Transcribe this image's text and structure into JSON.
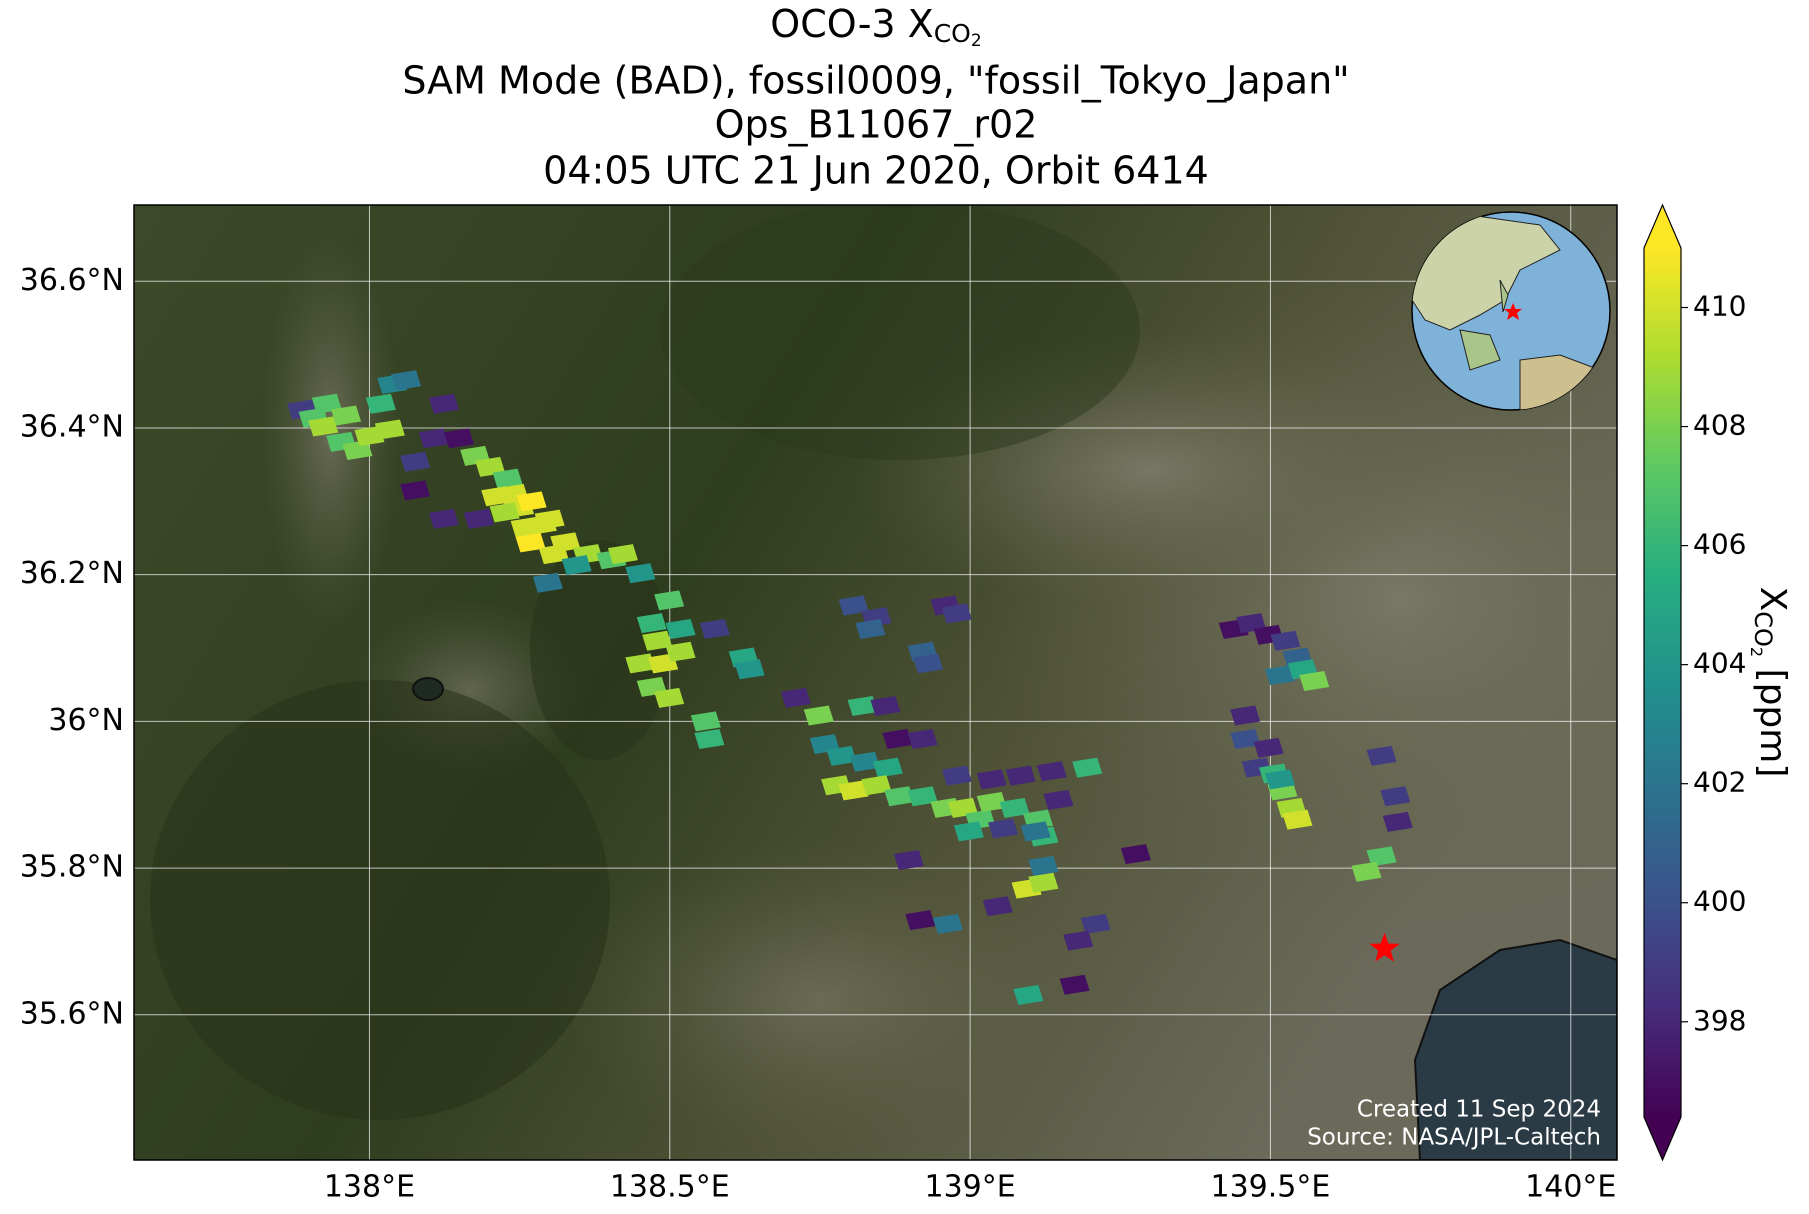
{
  "chart_data": {
    "type": "map",
    "title": {
      "main": "OCO-3 X",
      "sub": "CO",
      "sub2": "2"
    },
    "subtitle": [
      "SAM Mode (BAD), fossil0009, \"fossil_Tokyo_Japan\"",
      "Ops_B11067_r02",
      "04:05 UTC 21 Jun 2020, Orbit 6414"
    ],
    "xlim": [
      137.608,
      140.077
    ],
    "ylim": [
      35.402,
      36.704
    ],
    "xticks": [
      {
        "value": 138,
        "label": "138°E"
      },
      {
        "value": 138.5,
        "label": "138.5°E"
      },
      {
        "value": 139,
        "label": "139°E"
      },
      {
        "value": 139.5,
        "label": "139.5°E"
      },
      {
        "value": 140,
        "label": "140°E"
      }
    ],
    "yticks": [
      {
        "value": 35.6,
        "label": "35.6°N"
      },
      {
        "value": 35.8,
        "label": "35.8°N"
      },
      {
        "value": 36,
        "label": "36°N"
      },
      {
        "value": 36.2,
        "label": "36.2°N"
      },
      {
        "value": 36.4,
        "label": "36.4°N"
      },
      {
        "value": 36.6,
        "label": "36.6°N"
      }
    ],
    "grid": true,
    "colormap": [
      "#440154",
      "#472d7b",
      "#3b528b",
      "#2c728e",
      "#21918c",
      "#28ae80",
      "#5ec962",
      "#addc30",
      "#fde725"
    ],
    "colorbar": {
      "label": {
        "main": "X",
        "sub": "CO",
        "sub2": "2",
        "unit": " [ppm]"
      },
      "clim": [
        396.4,
        411
      ],
      "ticks": [
        398,
        400,
        402,
        404,
        406,
        408,
        410
      ],
      "extend": "both"
    },
    "target": {
      "lon": 139.69,
      "lat": 35.69,
      "color": "#ff0000"
    },
    "credit": [
      "Created 11 Sep 2024",
      "Source: NASA/JPL-Caltech"
    ],
    "soundings": {
      "lon": [
        137.888,
        137.929,
        137.907,
        137.961,
        137.923,
        137.953,
        137.98,
        138.019,
        138.038,
        138.061,
        138.034,
        138.0,
        138.124,
        138.107,
        138.149,
        138.176,
        138.201,
        138.23,
        138.211,
        138.249,
        138.287,
        138.326,
        138.364,
        138.403,
        138.182,
        138.124,
        138.076,
        138.076,
        138.268,
        138.307,
        138.345,
        138.297,
        138.422,
        138.451,
        138.24,
        138.27,
        138.3,
        138.26,
        138.225,
        138.499,
        138.47,
        138.479,
        138.518,
        138.451,
        138.489,
        138.518,
        138.47,
        138.499,
        138.575,
        138.623,
        138.633,
        138.71,
        138.56,
        138.566,
        138.748,
        138.806,
        138.844,
        138.834,
        138.959,
        138.978,
        138.921,
        138.93,
        138.821,
        138.859,
        138.758,
        138.786,
        138.825,
        138.879,
        138.921,
        138.863,
        138.777,
        138.806,
        138.844,
        138.882,
        138.921,
        138.959,
        138.988,
        139.017,
        139.036,
        139.074,
        139.113,
        139.122,
        138.998,
        139.055,
        138.978,
        139.036,
        139.084,
        139.136,
        139.195,
        139.147,
        139.109,
        139.122,
        139.094,
        139.122,
        139.046,
        138.898,
        138.917,
        138.963,
        139.097,
        139.174,
        139.209,
        139.18,
        139.276,
        139.439,
        139.468,
        139.497,
        139.525,
        139.545,
        139.516,
        139.554,
        139.573,
        139.458,
        139.458,
        139.497,
        139.477,
        139.506,
        139.52,
        139.535,
        139.545,
        139.516,
        139.685,
        139.708,
        139.712,
        139.685,
        139.66
      ],
      "lat": [
        36.425,
        36.433,
        36.414,
        36.417,
        36.402,
        36.381,
        36.37,
        36.433,
        36.46,
        36.465,
        36.398,
        36.389,
        36.433,
        36.386,
        36.386,
        36.362,
        36.347,
        36.331,
        36.307,
        36.291,
        36.268,
        36.244,
        36.228,
        36.221,
        36.276,
        36.276,
        36.354,
        36.315,
        36.244,
        36.228,
        36.213,
        36.189,
        36.228,
        36.202,
        36.31,
        36.3,
        36.275,
        36.265,
        36.285,
        36.165,
        36.134,
        36.11,
        36.126,
        36.079,
        36.079,
        36.095,
        36.047,
        36.032,
        36.126,
        36.087,
        36.071,
        36.032,
        36.0,
        35.976,
        36.008,
        36.158,
        36.142,
        36.126,
        36.158,
        36.147,
        36.095,
        36.079,
        36.021,
        36.021,
        35.969,
        35.953,
        35.945,
        35.976,
        35.976,
        35.937,
        35.913,
        35.906,
        35.913,
        35.898,
        35.898,
        35.882,
        35.882,
        35.866,
        35.89,
        35.882,
        35.866,
        35.843,
        35.85,
        35.854,
        35.926,
        35.921,
        35.926,
        35.932,
        35.937,
        35.893,
        35.85,
        35.803,
        35.772,
        35.78,
        35.748,
        35.811,
        35.729,
        35.724,
        35.627,
        35.641,
        35.724,
        35.701,
        35.819,
        36.126,
        36.134,
        36.118,
        36.11,
        36.087,
        36.063,
        36.071,
        36.055,
        36.008,
        35.976,
        35.964,
        35.937,
        35.929,
        35.906,
        35.882,
        35.866,
        35.921,
        35.953,
        35.898,
        35.863,
        35.816,
        35.795
      ],
      "xco2": [
        399,
        407,
        407,
        408,
        409,
        407,
        408,
        406,
        403,
        402,
        409,
        409,
        398,
        398,
        397,
        408,
        409,
        407,
        410,
        410,
        410,
        410,
        409,
        407,
        398,
        398,
        399,
        397,
        411,
        410,
        404,
        402,
        409,
        404,
        410,
        411,
        410,
        410,
        409,
        407,
        406,
        409,
        405,
        409,
        410,
        409,
        408,
        409,
        399,
        405,
        404,
        398,
        407,
        406,
        408,
        400,
        399,
        401,
        398,
        399,
        401,
        400,
        406,
        398,
        403,
        404,
        403,
        397,
        398,
        405,
        409,
        410,
        409,
        407,
        406,
        408,
        409,
        407,
        408,
        406,
        407,
        406,
        405,
        399,
        399,
        398,
        398,
        398,
        406,
        398,
        402,
        402,
        410,
        409,
        398,
        398,
        397,
        402,
        405,
        397,
        399,
        398,
        397,
        397,
        398,
        397,
        399,
        401,
        402,
        405,
        408,
        398,
        400,
        398,
        399,
        406,
        408,
        409,
        410,
        404,
        399,
        399,
        398,
        407,
        408
      ]
    }
  }
}
